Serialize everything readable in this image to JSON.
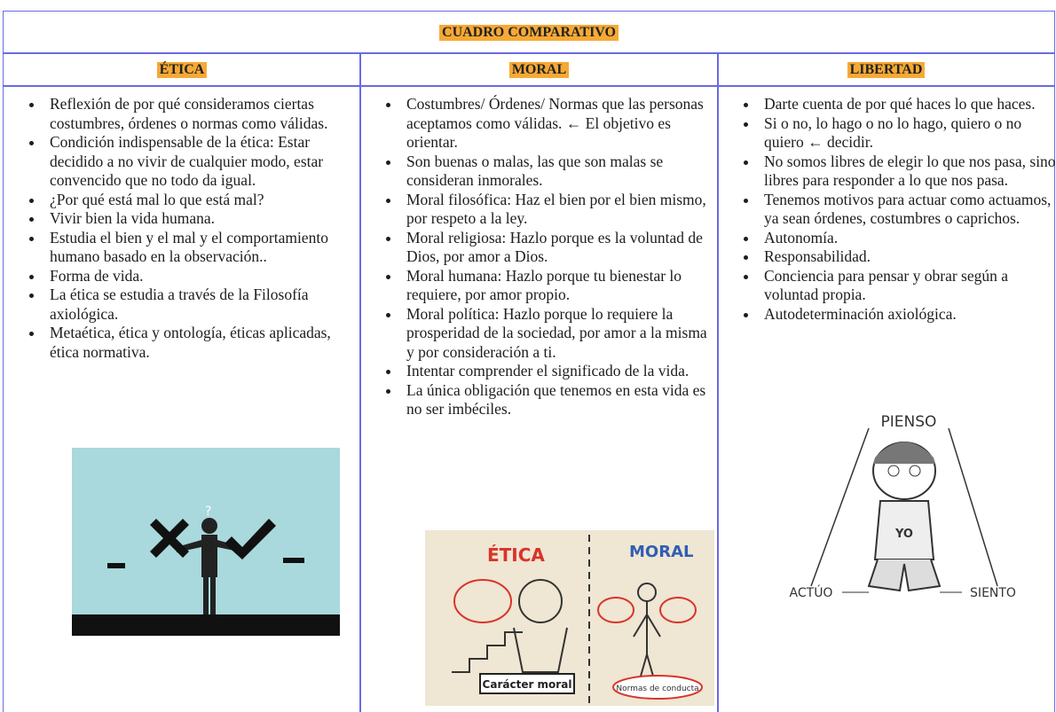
{
  "table": {
    "title": "CUADRO COMPARATIVO",
    "columns": [
      {
        "header": "ÉTICA",
        "items": [
          "Reflexión de por qué consideramos ciertas costumbres, órdenes o normas como válidas.",
          "Condición indispensable de la ética: Estar decidido a no vivir de cualquier modo, estar convencido que no todo da igual.",
          "¿Por qué está mal lo que está mal?",
          "Vivir bien la vida humana.",
          "Estudia el bien y el mal y el comportamiento humano basado en la observación..",
          "Forma de vida.",
          "La ética se estudia a través de la Filosofía axiológica.",
          "Metaética, ética y ontología, éticas aplicadas, ética normativa."
        ]
      },
      {
        "header": "MORAL",
        "items": [
          "Costumbres/ Órdenes/ Normas que las personas aceptamos como válidas. ← El objetivo es orientar.",
          "Son buenas o malas, las que son malas se consideran inmorales.",
          "Moral filosófica: Haz el bien por el bien mismo, por respeto a la ley.",
          "Moral religiosa: Hazlo porque es la voluntad de Dios, por amor a Dios.",
          "Moral humana: Hazlo porque tu bienestar lo requiere, por amor propio.",
          "Moral política: Hazlo porque lo requiere la prosperidad de la sociedad, por amor a la misma y por consideración a ti.",
          "Intentar comprender el significado de la vida.",
          "La única obligación que tenemos en esta vida es no ser imbéciles."
        ],
        "image_texts": [
          "ÉTICA",
          "MORAL",
          "Carácter moral",
          "Normas de conducta"
        ]
      },
      {
        "header": "LIBERTAD",
        "items": [
          "Darte cuenta de por qué haces lo que haces.",
          "Si o no, lo hago o no lo hago, quiero o no quiero ← decidir.",
          "No somos libres de elegir lo que nos pasa, sino libres para responder a lo que nos pasa.",
          "Tenemos motivos para actuar como actuamos, ya sean órdenes, costumbres o caprichos.",
          "Autonomía.",
          "Responsabilidad.",
          "Conciencia para pensar y obrar según a voluntad propia.",
          "Autodeterminación axiológica."
        ],
        "image_texts": [
          "PIENSO",
          "YO",
          "ACTÚO",
          "SIENTO"
        ]
      }
    ]
  }
}
